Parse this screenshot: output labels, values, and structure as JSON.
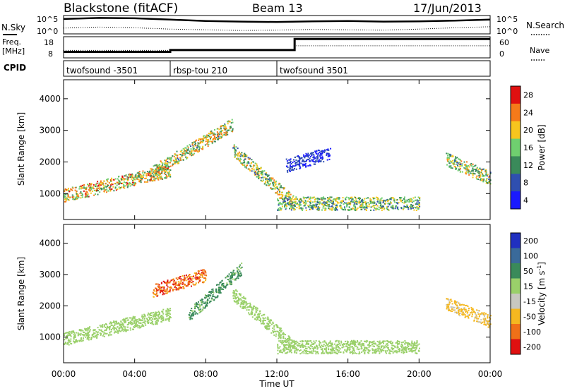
{
  "header": {
    "title": "Blackstone (fitACF)",
    "beam": "Beam 13",
    "date": "17/Jun/2013"
  },
  "noise_panel": {
    "left_label": "N.Sky",
    "right_label": "N.Search",
    "left_ticks": [
      "10^5",
      "10^0"
    ],
    "right_ticks": [
      "10^5",
      "10^0"
    ]
  },
  "freq_panel": {
    "left_label_1": "Freq.",
    "left_label_2": "[MHz]",
    "right_label": "Nave",
    "left_ticks": [
      "18",
      "8"
    ],
    "right_ticks": [
      "60",
      "0"
    ]
  },
  "cpid_panel": {
    "label": "CPID",
    "segments": [
      {
        "name": "twofsound -3501",
        "start": 0.0,
        "end": 6.0
      },
      {
        "name": "rbsp-tou 210",
        "start": 6.0,
        "end": 12.0
      },
      {
        "name": "twofsound 3501",
        "start": 12.0,
        "end": 24.0
      }
    ]
  },
  "axes": {
    "y_label": "Slant Range [km]",
    "x_label": "Time UT",
    "x_ticks": [
      "00:00",
      "04:00",
      "08:00",
      "12:00",
      "16:00",
      "20:00",
      "00:00"
    ],
    "y_ticks": [
      "1000",
      "2000",
      "3000",
      "4000"
    ]
  },
  "colorbars": {
    "power": {
      "label": "Power [dB]",
      "ticks": [
        "4",
        "8",
        "12",
        "16",
        "20",
        "24",
        "28"
      ],
      "colors": [
        "#1a1aff",
        "#2f4fb0",
        "#3a8a5a",
        "#6fcf6f",
        "#f7c51e",
        "#f57a1a",
        "#e01010"
      ]
    },
    "velocity": {
      "label": "Velocity [m s",
      "label_sup": "-1",
      "label_end": "]",
      "ticks": [
        "200",
        "100",
        "50",
        "15",
        "-15",
        "-50",
        "-100",
        "-200"
      ],
      "colors": [
        "#2030c0",
        "#3a6a9a",
        "#3a8a5a",
        "#9ad06a",
        "#c8c8c0",
        "#f5b820",
        "#f07018",
        "#e01010"
      ]
    }
  },
  "chart_data": [
    {
      "type": "line",
      "title": "Blackstone (fitACF)",
      "series": [
        {
          "name": "N.Sky",
          "x_hours": [
            0,
            2,
            4,
            6,
            8,
            10,
            12,
            14,
            16,
            18,
            20,
            22,
            24
          ],
          "values_log10": [
            4.2,
            4.5,
            4.4,
            4.0,
            3.6,
            3.4,
            3.3,
            3.5,
            3.6,
            3.4,
            3.5,
            3.7,
            4.0
          ]
        },
        {
          "name": "N.Search",
          "x_hours": [
            0,
            2,
            4,
            6,
            8,
            10,
            12,
            14,
            16,
            18,
            20,
            22,
            24
          ],
          "values_log10": [
            1.5,
            1.8,
            1.6,
            1.2,
            1.0,
            0.8,
            0.9,
            1.1,
            1.0,
            0.9,
            1.2,
            1.6,
            1.9
          ]
        }
      ],
      "ylim_log10": [
        0,
        5
      ]
    },
    {
      "type": "line",
      "series": [
        {
          "name": "Freq.",
          "x_hours": [
            0,
            6,
            6,
            13,
            13,
            24
          ],
          "values": [
            10.5,
            10.5,
            11.5,
            11.5,
            17.5,
            17.5
          ]
        },
        {
          "name": "Nave",
          "x_hours": [
            0,
            13,
            13,
            24
          ],
          "values": [
            20,
            20,
            35,
            35
          ]
        }
      ],
      "ylim_freq": [
        8,
        18
      ],
      "ylim_nave": [
        0,
        60
      ]
    },
    {
      "type": "heatmap",
      "xlabel": "Time UT",
      "ylabel": "Slant Range [km]",
      "xlim_hours": [
        0,
        24
      ],
      "ylim_km": [
        180,
        4600
      ],
      "colorbar": "Power [dB]",
      "clim": [
        3,
        30
      ],
      "features": [
        {
          "t_start": 0.0,
          "t_end": 6.0,
          "range_start_km": 950,
          "range_end_km": 1750,
          "peak_value": 28
        },
        {
          "t_start": 5.0,
          "t_end": 9.5,
          "range_start_km": 1700,
          "range_end_km": 3200,
          "peak_value": 26
        },
        {
          "t_start": 9.5,
          "t_end": 13.0,
          "range_start_km": 2400,
          "range_end_km": 700,
          "peak_value": 24
        },
        {
          "t_start": 12.0,
          "t_end": 20.0,
          "range_start_km": 700,
          "range_end_km": 700,
          "peak_value": 22
        },
        {
          "t_start": 12.5,
          "t_end": 15.0,
          "range_start_km": 1900,
          "range_end_km": 2300,
          "peak_value": 10
        },
        {
          "t_start": 21.5,
          "t_end": 24.0,
          "range_start_km": 2100,
          "range_end_km": 1500,
          "peak_value": 24
        }
      ]
    },
    {
      "type": "heatmap",
      "xlabel": "Time UT",
      "ylabel": "Slant Range [km]",
      "xlim_hours": [
        0,
        24
      ],
      "ylim_km": [
        180,
        4600
      ],
      "colorbar": "Velocity [m s-1]",
      "clim": [
        -200,
        200
      ],
      "features": [
        {
          "t_start": 0.0,
          "t_end": 6.0,
          "range_start_km": 950,
          "range_end_km": 1750,
          "peak_value": 0
        },
        {
          "t_start": 5.0,
          "t_end": 8.0,
          "range_start_km": 2500,
          "range_end_km": 3000,
          "peak_value": -200
        },
        {
          "t_start": 7.0,
          "t_end": 10.0,
          "range_start_km": 1700,
          "range_end_km": 3200,
          "peak_value": 100
        },
        {
          "t_start": 9.5,
          "t_end": 13.0,
          "range_start_km": 2400,
          "range_end_km": 700,
          "peak_value": 40
        },
        {
          "t_start": 12.0,
          "t_end": 20.0,
          "range_start_km": 700,
          "range_end_km": 700,
          "peak_value": 0
        },
        {
          "t_start": 21.5,
          "t_end": 24.0,
          "range_start_km": 2100,
          "range_end_km": 1500,
          "peak_value": -100
        }
      ]
    }
  ]
}
